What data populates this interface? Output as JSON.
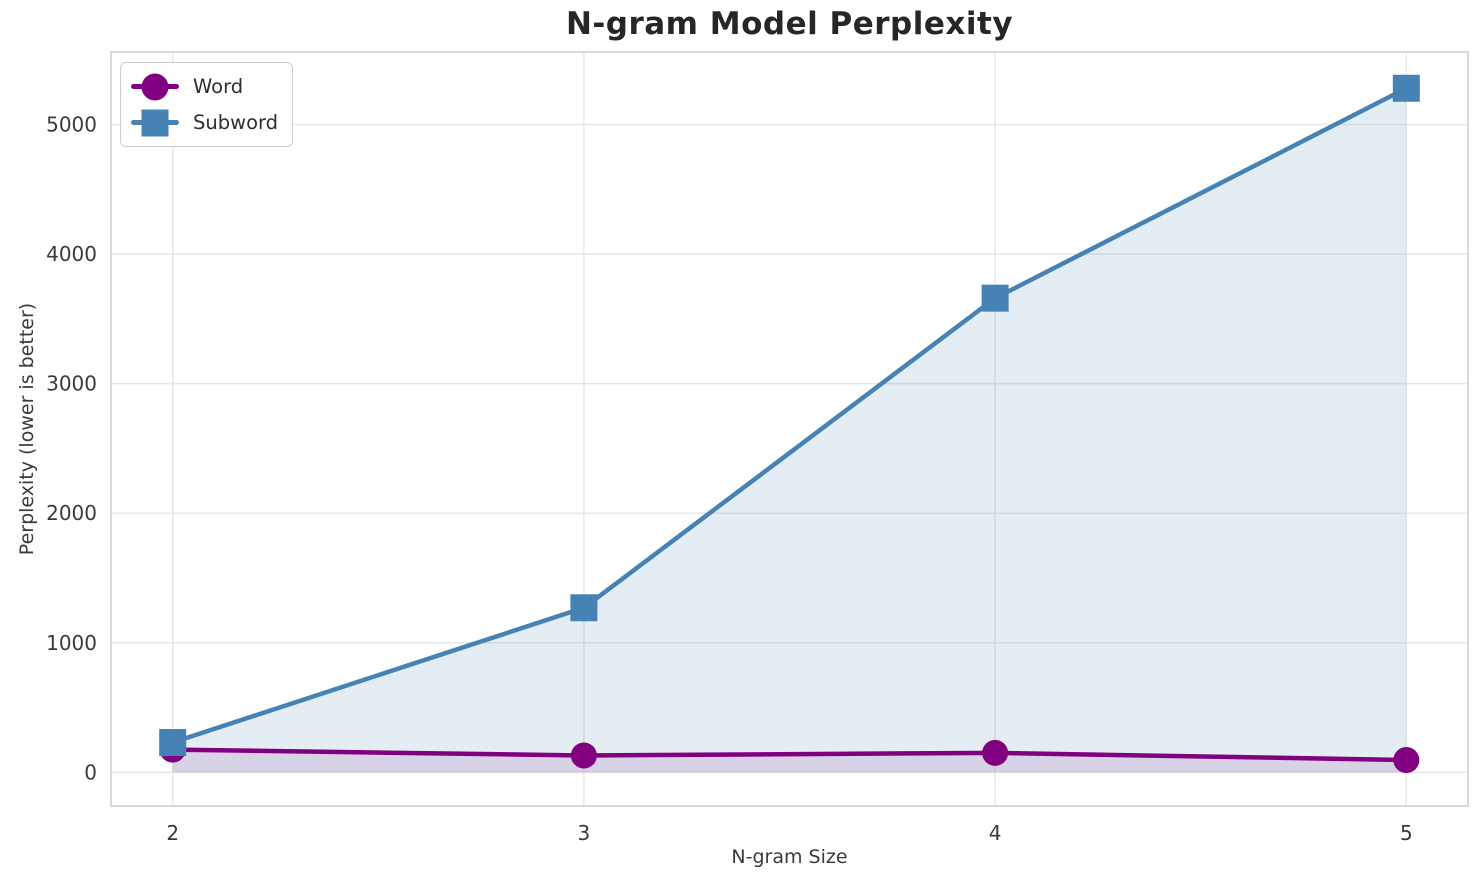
{
  "chart_data": {
    "type": "line",
    "title": "N-gram Model Perplexity",
    "xlabel": "N-gram Size",
    "ylabel": "Perplexity (lower is better)",
    "x": [
      2,
      3,
      4,
      5
    ],
    "series": [
      {
        "name": "Word",
        "color": "#800080",
        "marker": "circle",
        "values": [
          175,
          130,
          150,
          95
        ],
        "fill_to_zero": true,
        "fill_opacity": 0.12
      },
      {
        "name": "Subword",
        "color": "#4682B4",
        "marker": "square",
        "values": [
          230,
          1270,
          3660,
          5280
        ],
        "fill_to_zero": true,
        "fill_opacity": 0.14
      }
    ],
    "xticks": [
      2,
      3,
      4,
      5
    ],
    "yticks": [
      0,
      1000,
      2000,
      3000,
      4000,
      5000
    ],
    "xlim": [
      1.85,
      5.15
    ],
    "ylim": [
      -260,
      5560
    ],
    "grid": true,
    "legend_position": "upper left",
    "grid_color": "#e7e7e7",
    "spine_color": "#d9d9d9",
    "tick_text_color": "#3a3a3a",
    "title_color": "#262626"
  }
}
